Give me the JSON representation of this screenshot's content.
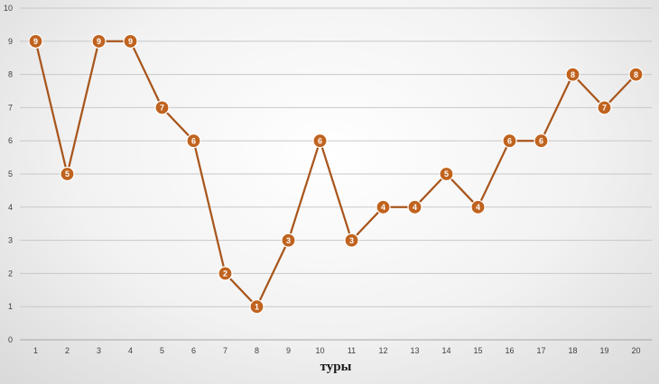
{
  "chart_data": {
    "type": "line",
    "title": "",
    "xlabel": "туры",
    "ylabel": "",
    "categories": [
      "1",
      "2",
      "3",
      "4",
      "5",
      "6",
      "7",
      "8",
      "9",
      "10",
      "11",
      "12",
      "13",
      "14",
      "15",
      "16",
      "17",
      "18",
      "19",
      "20"
    ],
    "series": [
      {
        "values": [
          9,
          5,
          9,
          9,
          7,
          6,
          2,
          1,
          3,
          6,
          3,
          4,
          4,
          5,
          4,
          6,
          6,
          8,
          7,
          8
        ]
      }
    ],
    "ylim": [
      0,
      10
    ],
    "yticks": [
      "0",
      "1",
      "2",
      "3",
      "4",
      "5",
      "6",
      "7",
      "8",
      "9",
      "10"
    ],
    "grid": true,
    "legend": "none",
    "data_labels": true,
    "colors": {
      "line": "#a8551c",
      "marker_fill": "#c0631f",
      "marker_stroke": "#ffffff",
      "grid": "#c8c8c8",
      "axis": "#a6a6a6"
    }
  }
}
